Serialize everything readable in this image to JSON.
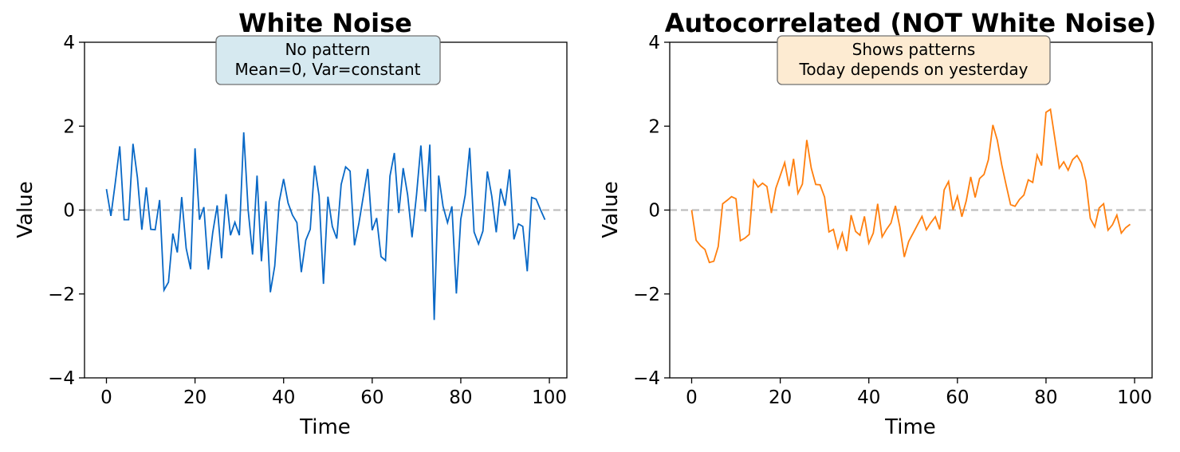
{
  "chart_data": [
    {
      "type": "line",
      "title": "White Noise",
      "xlabel": "Time",
      "ylabel": "Value",
      "xlim": [
        -4.95,
        103.95
      ],
      "ylim": [
        -4,
        4
      ],
      "xticks": [
        0,
        20,
        40,
        60,
        80,
        100
      ],
      "yticks": [
        -4,
        -2,
        0,
        2,
        4
      ],
      "ytick_labels": [
        "−4",
        "−2",
        "0",
        "2",
        "4"
      ],
      "grid": false,
      "reference_line": {
        "y": 0,
        "style": "dashed",
        "color": "#bfbfbf"
      },
      "annotation": {
        "lines": [
          "No pattern",
          "Mean=0, Var=constant"
        ],
        "fill": "#d6e9f0",
        "border": "#707070"
      },
      "series": [
        {
          "color": "#0868c6",
          "x": [
            0,
            1,
            2,
            3,
            4,
            5,
            6,
            7,
            8,
            9,
            10,
            11,
            12,
            13,
            14,
            15,
            16,
            17,
            18,
            19,
            20,
            21,
            22,
            23,
            24,
            25,
            26,
            27,
            28,
            29,
            30,
            31,
            32,
            33,
            34,
            35,
            36,
            37,
            38,
            39,
            40,
            41,
            42,
            43,
            44,
            45,
            46,
            47,
            48,
            49,
            50,
            51,
            52,
            53,
            54,
            55,
            56,
            57,
            58,
            59,
            60,
            61,
            62,
            63,
            64,
            65,
            66,
            67,
            68,
            69,
            70,
            71,
            72,
            73,
            74,
            75,
            76,
            77,
            78,
            79,
            80,
            81,
            82,
            83,
            84,
            85,
            86,
            87,
            88,
            89,
            90,
            91,
            92,
            93,
            94,
            95,
            96,
            97,
            98,
            99
          ],
          "values": [
            0.5,
            -0.14,
            0.65,
            1.52,
            -0.23,
            -0.23,
            1.58,
            0.77,
            -0.47,
            0.54,
            -0.46,
            -0.47,
            0.24,
            -1.91,
            -1.72,
            -0.56,
            -1.01,
            0.31,
            -0.91,
            -1.41,
            1.47,
            -0.23,
            0.07,
            -1.42,
            -0.54,
            0.11,
            -1.15,
            0.38,
            -0.6,
            -0.29,
            -0.6,
            1.85,
            -0.01,
            -1.06,
            0.82,
            -1.22,
            0.21,
            -1.96,
            -1.33,
            0.2,
            0.74,
            0.17,
            -0.12,
            -0.3,
            -1.48,
            -0.72,
            -0.46,
            1.06,
            0.34,
            -1.76,
            0.32,
            -0.39,
            -0.68,
            0.61,
            1.03,
            0.93,
            -0.84,
            -0.31,
            0.33,
            0.98,
            -0.48,
            -0.19,
            -1.11,
            -1.2,
            0.81,
            1.36,
            -0.07,
            1.0,
            0.36,
            -0.65,
            0.36,
            1.54,
            -0.04,
            1.56,
            -2.62,
            0.82,
            0.09,
            -0.3,
            0.09,
            -1.99,
            -0.22,
            0.36,
            1.48,
            -0.52,
            -0.81,
            -0.5,
            0.92,
            0.33,
            -0.53,
            0.51,
            0.1,
            0.97,
            -0.7,
            -0.33,
            -0.39,
            -1.46,
            0.3,
            0.26,
            0.01,
            -0.23
          ]
        }
      ]
    },
    {
      "type": "line",
      "title": "Autocorrelated (NOT White Noise)",
      "xlabel": "Time",
      "ylabel": "Value",
      "xlim": [
        -4.95,
        103.95
      ],
      "ylim": [
        -4,
        4
      ],
      "xticks": [
        0,
        20,
        40,
        60,
        80,
        100
      ],
      "yticks": [
        -4,
        -2,
        0,
        2,
        4
      ],
      "ytick_labels": [
        "−4",
        "−2",
        "0",
        "2",
        "4"
      ],
      "grid": false,
      "reference_line": {
        "y": 0,
        "style": "dashed",
        "color": "#bfbfbf"
      },
      "annotation": {
        "lines": [
          "Shows patterns",
          "Today depends on yesterday"
        ],
        "fill": "#fdebd2",
        "border": "#707070"
      },
      "series": [
        {
          "color": "#ff7f0e",
          "x": [
            0,
            1,
            2,
            3,
            4,
            5,
            6,
            7,
            8,
            9,
            10,
            11,
            12,
            13,
            14,
            15,
            16,
            17,
            18,
            19,
            20,
            21,
            22,
            23,
            24,
            25,
            26,
            27,
            28,
            29,
            30,
            31,
            32,
            33,
            34,
            35,
            36,
            37,
            38,
            39,
            40,
            41,
            42,
            43,
            44,
            45,
            46,
            47,
            48,
            49,
            50,
            51,
            52,
            53,
            54,
            55,
            56,
            57,
            58,
            59,
            60,
            61,
            62,
            63,
            64,
            65,
            66,
            67,
            68,
            69,
            70,
            71,
            72,
            73,
            74,
            75,
            76,
            77,
            78,
            79,
            80,
            81,
            82,
            83,
            84,
            85,
            86,
            87,
            88,
            89,
            90,
            91,
            92,
            93,
            94,
            95,
            96,
            97,
            98,
            99
          ],
          "values": [
            0.0,
            -0.72,
            -0.85,
            -0.94,
            -1.25,
            -1.22,
            -0.87,
            0.15,
            0.23,
            0.32,
            0.27,
            -0.73,
            -0.67,
            -0.58,
            0.71,
            0.55,
            0.64,
            0.56,
            -0.07,
            0.52,
            0.82,
            1.13,
            0.57,
            1.22,
            0.4,
            0.62,
            1.67,
            1.0,
            0.61,
            0.6,
            0.31,
            -0.52,
            -0.46,
            -0.9,
            -0.55,
            -0.98,
            -0.12,
            -0.51,
            -0.6,
            -0.15,
            -0.79,
            -0.55,
            0.15,
            -0.64,
            -0.46,
            -0.31,
            0.1,
            -0.4,
            -1.12,
            -0.75,
            -0.55,
            -0.35,
            -0.15,
            -0.47,
            -0.3,
            -0.16,
            -0.46,
            0.48,
            0.68,
            0.0,
            0.33,
            -0.16,
            0.22,
            0.79,
            0.3,
            0.75,
            0.85,
            1.2,
            2.03,
            1.67,
            1.08,
            0.6,
            0.13,
            0.09,
            0.25,
            0.36,
            0.72,
            0.66,
            1.31,
            1.06,
            2.33,
            2.4,
            1.7,
            1.0,
            1.15,
            0.95,
            1.2,
            1.3,
            1.12,
            0.7,
            -0.2,
            -0.4,
            0.05,
            0.15,
            -0.48,
            -0.35,
            -0.12,
            -0.55,
            -0.42,
            -0.34
          ]
        }
      ]
    }
  ]
}
